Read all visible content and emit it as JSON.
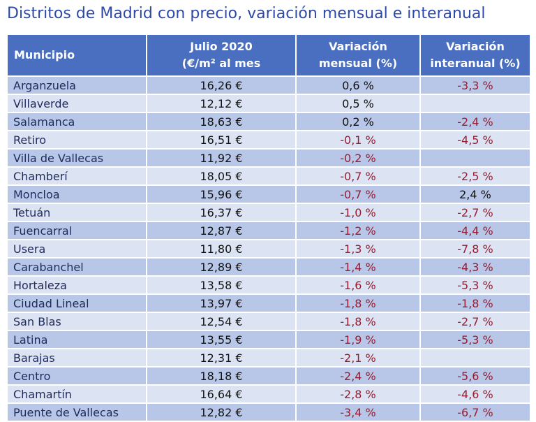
{
  "title": "Distritos de Madrid con precio, variación mensual e interanual",
  "header": {
    "municipio": "Municipio",
    "precio_line1": "Julio 2020",
    "precio_line2": "(€/m² al mes",
    "mensual_line1": "Variación",
    "mensual_line2": "mensual (%)",
    "interanual_line1": "Variación",
    "interanual_line2": "interanual (%)"
  },
  "colors": {
    "header_bg": "#4a6fc0",
    "row_dark": "#b8c7e8",
    "row_light": "#dce3f3",
    "negative_text": "#9b1b30",
    "title_text": "#2e4aa8"
  },
  "chart_data": {
    "type": "table",
    "title": "Distritos de Madrid con precio, variación mensual e interanual",
    "columns": [
      "Municipio",
      "Julio 2020 (€/m² al mes",
      "Variación mensual (%)",
      "Variación interanual (%)"
    ],
    "rows": [
      {
        "municipio": "Arganzuela",
        "precio": "16,26 €",
        "mensual": "0,6 %",
        "interanual": "-3,3 %"
      },
      {
        "municipio": "Villaverde",
        "precio": "12,12 €",
        "mensual": "0,5 %",
        "interanual": ""
      },
      {
        "municipio": "Salamanca",
        "precio": "18,63 €",
        "mensual": "0,2 %",
        "interanual": "-2,4 %"
      },
      {
        "municipio": "Retiro",
        "precio": "16,51 €",
        "mensual": "-0,1 %",
        "interanual": "-4,5 %"
      },
      {
        "municipio": "Villa de Vallecas",
        "precio": "11,92 €",
        "mensual": "-0,2 %",
        "interanual": ""
      },
      {
        "municipio": "Chamberí",
        "precio": "18,05 €",
        "mensual": "-0,7 %",
        "interanual": "-2,5 %"
      },
      {
        "municipio": "Moncloa",
        "precio": "15,96 €",
        "mensual": "-0,7 %",
        "interanual": "2,4 %"
      },
      {
        "municipio": "Tetuán",
        "precio": "16,37 €",
        "mensual": "-1,0 %",
        "interanual": "-2,7 %"
      },
      {
        "municipio": "Fuencarral",
        "precio": "12,87 €",
        "mensual": "-1,2 %",
        "interanual": "-4,4 %"
      },
      {
        "municipio": "Usera",
        "precio": "11,80 €",
        "mensual": "-1,3 %",
        "interanual": "-7,8 %"
      },
      {
        "municipio": "Carabanchel",
        "precio": "12,89 €",
        "mensual": "-1,4 %",
        "interanual": "-4,3 %"
      },
      {
        "municipio": "Hortaleza",
        "precio": "13,58 €",
        "mensual": "-1,6 %",
        "interanual": "-5,3 %"
      },
      {
        "municipio": "Ciudad Lineal",
        "precio": "13,97 €",
        "mensual": "-1,8 %",
        "interanual": "-1,8 %"
      },
      {
        "municipio": "San Blas",
        "precio": "12,54 €",
        "mensual": "-1,8 %",
        "interanual": "-2,7 %"
      },
      {
        "municipio": "Latina",
        "precio": "13,55 €",
        "mensual": "-1,9 %",
        "interanual": "-5,3 %"
      },
      {
        "municipio": "Barajas",
        "precio": "12,31 €",
        "mensual": "-2,1 %",
        "interanual": ""
      },
      {
        "municipio": "Centro",
        "precio": "18,18 €",
        "mensual": "-2,4 %",
        "interanual": "-5,6 %"
      },
      {
        "municipio": "Chamartín",
        "precio": "16,64 €",
        "mensual": "-2,8 %",
        "interanual": "-4,6 %"
      },
      {
        "municipio": "Puente de Vallecas",
        "precio": "12,82 €",
        "mensual": "-3,4 %",
        "interanual": "-6,7 %"
      }
    ]
  }
}
